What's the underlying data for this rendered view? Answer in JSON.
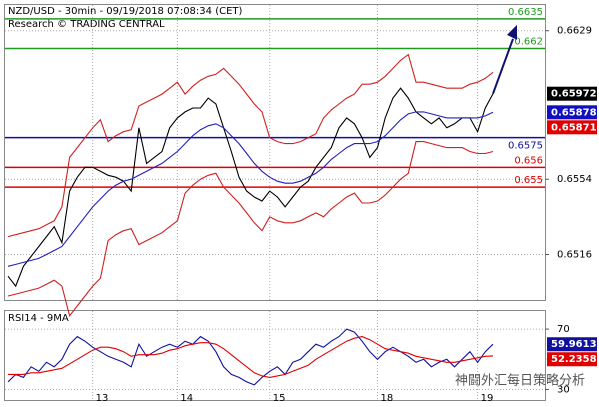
{
  "chart_data": [
    {
      "type": "line",
      "title": "NZD/USD - 30min - 09/19/2018 07:08:34 (CET)",
      "subtitle": "Research © TRADING CENTRAL",
      "ylim": [
        0.6493,
        0.6642
      ],
      "yticks": [
        0.6629,
        0.6554,
        0.6516
      ],
      "grid": true,
      "series": [
        {
          "name": "Price",
          "color": "#000000",
          "values": [
            0.6505,
            0.65,
            0.651,
            0.6515,
            0.652,
            0.6525,
            0.653,
            0.6522,
            0.6548,
            0.6555,
            0.656,
            0.656,
            0.6558,
            0.6556,
            0.6555,
            0.6553,
            0.6548,
            0.658,
            0.6562,
            0.6565,
            0.6568,
            0.658,
            0.6585,
            0.6588,
            0.659,
            0.659,
            0.6595,
            0.6592,
            0.658,
            0.6568,
            0.6555,
            0.6548,
            0.6545,
            0.6543,
            0.6548,
            0.6545,
            0.654,
            0.6545,
            0.655,
            0.6553,
            0.656,
            0.6565,
            0.657,
            0.658,
            0.6585,
            0.6582,
            0.6575,
            0.6565,
            0.657,
            0.6585,
            0.6595,
            0.66,
            0.6595,
            0.6588,
            0.6585,
            0.6582,
            0.6585,
            0.658,
            0.6582,
            0.6585,
            0.6585,
            0.6578,
            0.659,
            0.65972
          ]
        },
        {
          "name": "Upper band",
          "color": "#d02020",
          "values": [
            0.6525,
            0.6526,
            0.6527,
            0.6528,
            0.6529,
            0.6531,
            0.6533,
            0.654,
            0.6565,
            0.657,
            0.6575,
            0.658,
            0.6584,
            0.6573,
            0.6576,
            0.6578,
            0.6579,
            0.6591,
            0.6593,
            0.6595,
            0.6597,
            0.66,
            0.6603,
            0.6597,
            0.6601,
            0.6604,
            0.6606,
            0.6607,
            0.661,
            0.6606,
            0.6602,
            0.6597,
            0.6592,
            0.6588,
            0.6575,
            0.6573,
            0.6572,
            0.6572,
            0.6573,
            0.6575,
            0.6577,
            0.6585,
            0.6589,
            0.6592,
            0.6595,
            0.6597,
            0.6602,
            0.6602,
            0.6603,
            0.6606,
            0.661,
            0.6614,
            0.6617,
            0.6603,
            0.6603,
            0.6602,
            0.6601,
            0.66,
            0.66,
            0.66,
            0.6602,
            0.6603,
            0.6605,
            0.6608
          ]
        },
        {
          "name": "Middle band",
          "color": "#2020c0",
          "values": [
            0.651,
            0.6511,
            0.6512,
            0.6513,
            0.6514,
            0.6516,
            0.6518,
            0.652,
            0.6525,
            0.653,
            0.6535,
            0.654,
            0.6544,
            0.6548,
            0.6551,
            0.6553,
            0.6554,
            0.6556,
            0.6558,
            0.656,
            0.6562,
            0.6565,
            0.6568,
            0.6572,
            0.6576,
            0.6579,
            0.6581,
            0.6582,
            0.658,
            0.6576,
            0.6572,
            0.6567,
            0.6562,
            0.6558,
            0.6555,
            0.6553,
            0.6552,
            0.6552,
            0.6553,
            0.6555,
            0.6557,
            0.656,
            0.6564,
            0.6567,
            0.657,
            0.6572,
            0.6572,
            0.6572,
            0.6573,
            0.6576,
            0.658,
            0.6584,
            0.6587,
            0.6588,
            0.6588,
            0.6587,
            0.6586,
            0.6585,
            0.6585,
            0.6585,
            0.6585,
            0.6585,
            0.6586,
            0.65878
          ]
        },
        {
          "name": "Lower band",
          "color": "#d02020",
          "values": [
            0.6495,
            0.6496,
            0.6497,
            0.6498,
            0.6499,
            0.6501,
            0.6503,
            0.65,
            0.6485,
            0.649,
            0.6495,
            0.65,
            0.6504,
            0.6523,
            0.6526,
            0.6528,
            0.6529,
            0.6521,
            0.6523,
            0.6525,
            0.6527,
            0.653,
            0.6533,
            0.6547,
            0.6551,
            0.6554,
            0.6556,
            0.6557,
            0.655,
            0.6546,
            0.6542,
            0.6537,
            0.6532,
            0.6528,
            0.6535,
            0.6533,
            0.6532,
            0.6532,
            0.6533,
            0.6535,
            0.6537,
            0.6535,
            0.6539,
            0.6542,
            0.6545,
            0.6547,
            0.6542,
            0.6542,
            0.6543,
            0.6546,
            0.655,
            0.6554,
            0.6557,
            0.6573,
            0.6573,
            0.6572,
            0.6571,
            0.657,
            0.657,
            0.657,
            0.6568,
            0.6567,
            0.6567,
            0.6568
          ]
        }
      ],
      "levels": [
        {
          "value": 0.6635,
          "color": "#1f9a1f"
        },
        {
          "value": 0.662,
          "color": "#1f9a1f"
        },
        {
          "value": 0.6575,
          "color": "#1010a0"
        },
        {
          "value": 0.656,
          "color": "#e00000"
        },
        {
          "value": 0.655,
          "color": "#e00000"
        }
      ],
      "price_labels": [
        {
          "value": 0.65972,
          "color": "#000000"
        },
        {
          "value": 0.65878,
          "color": "#1010c0"
        },
        {
          "value": 0.65871,
          "color": "#e00000"
        }
      ]
    },
    {
      "type": "line",
      "title": "RSI14 - 9MA",
      "categories": [
        null,
        null,
        null,
        null,
        null,
        null,
        null,
        null,
        null,
        null,
        null,
        "13",
        null,
        null,
        null,
        null,
        null,
        null,
        null,
        null,
        null,
        null,
        "14",
        null,
        null,
        null,
        null,
        null,
        null,
        null,
        null,
        null,
        null,
        null,
        "15",
        null,
        null,
        null,
        null,
        null,
        null,
        null,
        null,
        null,
        null,
        null,
        null,
        null,
        "18",
        null,
        null,
        null,
        null,
        null,
        null,
        null,
        null,
        null,
        null,
        null,
        null,
        "19",
        null,
        null
      ],
      "ylim": [
        23,
        82
      ],
      "yticks": [
        70,
        30
      ],
      "grid": true,
      "series": [
        {
          "name": "RSI14",
          "color": "#1010a0",
          "values": [
            35,
            40,
            38,
            45,
            42,
            48,
            45,
            50,
            60,
            65,
            62,
            58,
            55,
            52,
            50,
            48,
            45,
            60,
            52,
            55,
            58,
            60,
            58,
            62,
            60,
            65,
            62,
            55,
            45,
            40,
            38,
            35,
            33,
            38,
            42,
            45,
            40,
            48,
            50,
            55,
            60,
            58,
            62,
            65,
            70,
            68,
            62,
            55,
            50,
            55,
            58,
            55,
            52,
            48,
            50,
            45,
            48,
            50,
            45,
            50,
            55,
            48,
            55,
            59.9613
          ]
        },
        {
          "name": "9MA",
          "color": "#e00000",
          "values": [
            40,
            40,
            40,
            41,
            41,
            42,
            43,
            44,
            47,
            50,
            53,
            56,
            58,
            58,
            57,
            55,
            52,
            53,
            53,
            53,
            54,
            56,
            57,
            59,
            60,
            61,
            61,
            60,
            57,
            53,
            49,
            45,
            41,
            39,
            38,
            39,
            40,
            42,
            44,
            46,
            50,
            53,
            56,
            59,
            62,
            64,
            65,
            63,
            60,
            57,
            56,
            55,
            54,
            52,
            51,
            50,
            49,
            48,
            48,
            49,
            50,
            51,
            52,
            52.2358
          ]
        }
      ],
      "price_labels": [
        {
          "value": 59.9613,
          "color": "#1010a0"
        },
        {
          "value": 52.2358,
          "color": "#e00000"
        }
      ],
      "watermark": "神闘外汇每日策略分析"
    }
  ]
}
